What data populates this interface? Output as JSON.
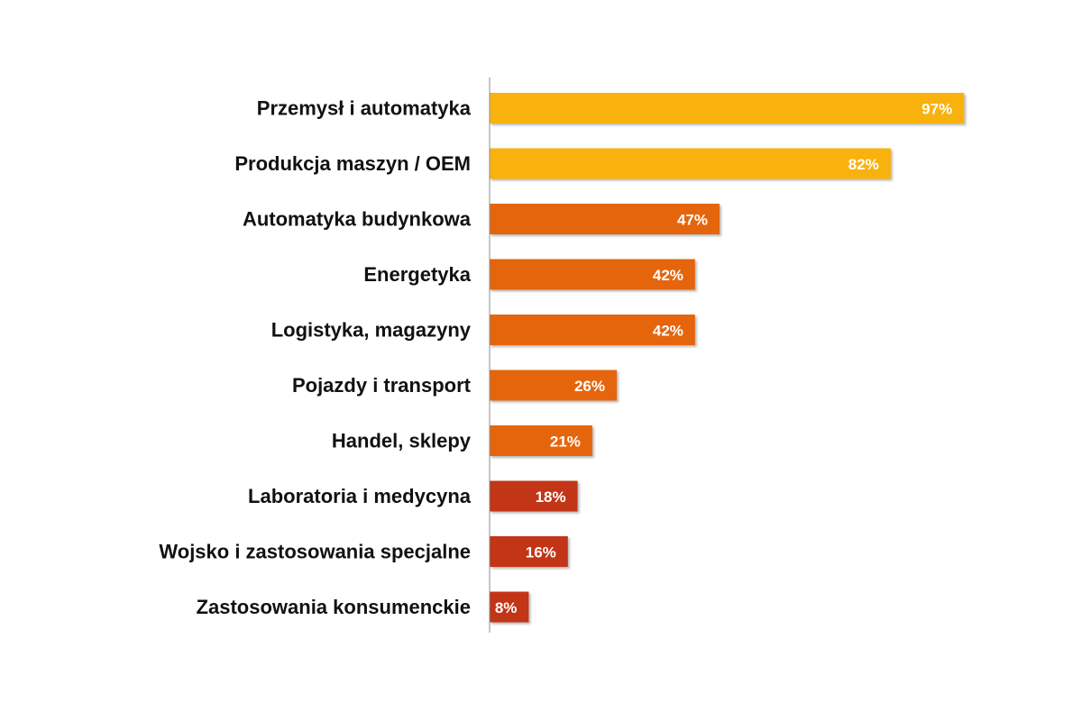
{
  "chart_data": {
    "type": "bar",
    "orientation": "horizontal",
    "categories": [
      "Przemysł i automatyka",
      "Produkcja maszyn / OEM",
      "Automatyka budynkowa",
      "Energetyka",
      "Logistyka, magazyny",
      "Pojazdy i transport",
      "Handel, sklepy",
      "Laboratoria i medycyna",
      "Wojsko i zastosowania specjalne",
      "Zastosowania konsumenckie"
    ],
    "values": [
      97,
      82,
      47,
      42,
      42,
      26,
      21,
      18,
      16,
      8
    ],
    "value_labels": [
      "97%",
      "82%",
      "47%",
      "42%",
      "42%",
      "26%",
      "21%",
      "18%",
      "16%",
      "8%"
    ],
    "value_unit": "%",
    "bar_colors": [
      "#F9B208",
      "#F9B208",
      "#E5650C",
      "#E5650C",
      "#E5650C",
      "#E5650C",
      "#E5650C",
      "#C23415",
      "#C23415",
      "#C23415"
    ],
    "xlim": [
      0,
      100
    ],
    "grid": false,
    "legend": "none",
    "title": "",
    "xlabel": "",
    "ylabel": ""
  }
}
